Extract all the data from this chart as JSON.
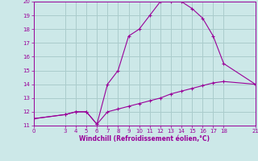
{
  "line1_x": [
    0,
    3,
    4,
    5,
    6,
    7,
    8,
    9,
    10,
    11,
    12,
    13,
    14,
    15,
    16,
    17,
    18,
    21
  ],
  "line1_y": [
    11.5,
    11.8,
    12.0,
    12.0,
    11.1,
    14.0,
    15.0,
    17.5,
    18.0,
    19.0,
    20.0,
    20.0,
    20.0,
    19.5,
    18.8,
    17.5,
    15.5,
    14.0
  ],
  "line2_x": [
    0,
    3,
    4,
    5,
    6,
    7,
    8,
    9,
    10,
    11,
    12,
    13,
    14,
    15,
    16,
    17,
    18,
    21
  ],
  "line2_y": [
    11.5,
    11.8,
    12.0,
    12.0,
    11.1,
    12.0,
    12.2,
    12.4,
    12.6,
    12.8,
    13.0,
    13.3,
    13.5,
    13.7,
    13.9,
    14.1,
    14.2,
    14.0
  ],
  "line_color": "#990099",
  "bg_color": "#cce8e8",
  "grid_color": "#aacccc",
  "text_color": "#990099",
  "xlabel": "Windchill (Refroidissement éolien,°C)",
  "ylim": [
    11,
    20
  ],
  "xlim": [
    0,
    21
  ],
  "yticks": [
    11,
    12,
    13,
    14,
    15,
    16,
    17,
    18,
    19,
    20
  ],
  "xticks": [
    0,
    3,
    4,
    5,
    6,
    7,
    8,
    9,
    10,
    11,
    12,
    13,
    14,
    15,
    16,
    17,
    18,
    21
  ]
}
